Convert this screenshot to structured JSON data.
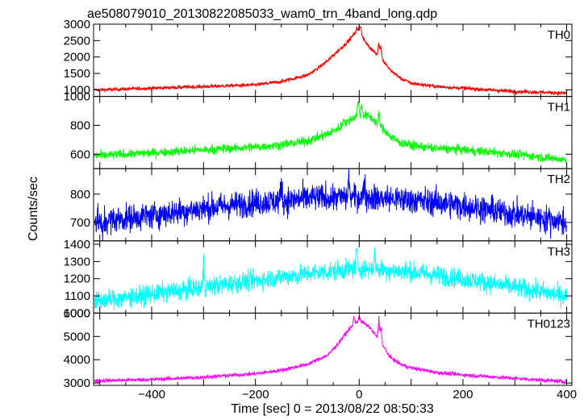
{
  "chart_data": {
    "type": "line",
    "title": "ae508079010_20130822085033_wam0_trn_4band_long.qdp",
    "xlabel": "Time [sec] 0 = 2013/08/22 08:50:33",
    "ylabel": "Counts/sec",
    "xlim": [
      -512,
      410
    ],
    "xticks": [
      -400,
      -200,
      0,
      200,
      400
    ],
    "panels": [
      {
        "name": "TH0",
        "color": "#ff0000",
        "ylim": [
          800,
          3000
        ],
        "yticks": [
          1000,
          1500,
          2000,
          2500,
          3000
        ],
        "x": [
          -500,
          -400,
          -300,
          -200,
          -150,
          -100,
          -80,
          -60,
          -40,
          -20,
          -10,
          0,
          10,
          20,
          40,
          60,
          80,
          100,
          150,
          200,
          300,
          400
        ],
        "values": [
          1000,
          1050,
          1100,
          1150,
          1250,
          1450,
          1650,
          1900,
          2200,
          2500,
          2700,
          2800,
          2500,
          2300,
          2000,
          1600,
          1350,
          1200,
          1100,
          1050,
          950,
          900
        ],
        "spikes": [
          [
            -5,
            2900
          ],
          [
            0,
            3000
          ],
          [
            3,
            2950
          ],
          [
            38,
            2550
          ],
          [
            42,
            2450
          ]
        ],
        "noise": 40
      },
      {
        "name": "TH1",
        "color": "#00ff00",
        "ylim": [
          500,
          1000
        ],
        "yticks": [
          600,
          800,
          1000
        ],
        "x": [
          -500,
          -400,
          -300,
          -200,
          -150,
          -100,
          -60,
          -40,
          -20,
          0,
          20,
          40,
          60,
          80,
          100,
          150,
          200,
          300,
          400
        ],
        "values": [
          590,
          610,
          630,
          650,
          665,
          690,
          740,
          780,
          830,
          880,
          860,
          800,
          720,
          680,
          660,
          640,
          630,
          600,
          560
        ],
        "spikes": [
          [
            -2,
            990
          ],
          [
            5,
            960
          ],
          [
            38,
            900
          ],
          [
            -30,
            870
          ]
        ],
        "noise": 22
      },
      {
        "name": "TH2",
        "color": "#0000ff",
        "ylim": [
          635,
          890
        ],
        "yticks": [
          700,
          800
        ],
        "x": [
          -500,
          -400,
          -300,
          -200,
          -100,
          0,
          100,
          200,
          300,
          400
        ],
        "values": [
          705,
          725,
          750,
          770,
          785,
          790,
          780,
          760,
          730,
          700
        ],
        "spikes": [
          [
            -20,
            880
          ],
          [
            10,
            870
          ],
          [
            -150,
            855
          ],
          [
            -495,
            640
          ]
        ],
        "noise": 34
      },
      {
        "name": "TH3",
        "color": "#00ffff",
        "ylim": [
          1000,
          1420
        ],
        "yticks": [
          1000,
          1100,
          1200,
          1300,
          1400
        ],
        "x": [
          -500,
          -400,
          -300,
          -200,
          -100,
          0,
          100,
          200,
          300,
          400
        ],
        "values": [
          1070,
          1110,
          1150,
          1190,
          1230,
          1260,
          1240,
          1200,
          1150,
          1100
        ],
        "spikes": [
          [
            -5,
            1410
          ],
          [
            30,
            1380
          ],
          [
            -300,
            1300
          ]
        ],
        "noise": 40
      },
      {
        "name": "TH0123",
        "color": "#ff00ff",
        "ylim": [
          2900,
          6000
        ],
        "yticks": [
          3000,
          4000,
          5000,
          6000
        ],
        "x": [
          -500,
          -400,
          -300,
          -200,
          -150,
          -100,
          -60,
          -40,
          -20,
          0,
          20,
          40,
          60,
          80,
          100,
          150,
          200,
          300,
          400
        ],
        "values": [
          3100,
          3150,
          3250,
          3400,
          3550,
          3800,
          4200,
          4700,
          5300,
          5700,
          5400,
          4800,
          4100,
          3800,
          3650,
          3450,
          3350,
          3200,
          3050
        ],
        "spikes": [
          [
            -10,
            5950
          ],
          [
            0,
            5900
          ],
          [
            38,
            5900
          ],
          [
            42,
            5700
          ]
        ],
        "noise": 60
      }
    ]
  }
}
